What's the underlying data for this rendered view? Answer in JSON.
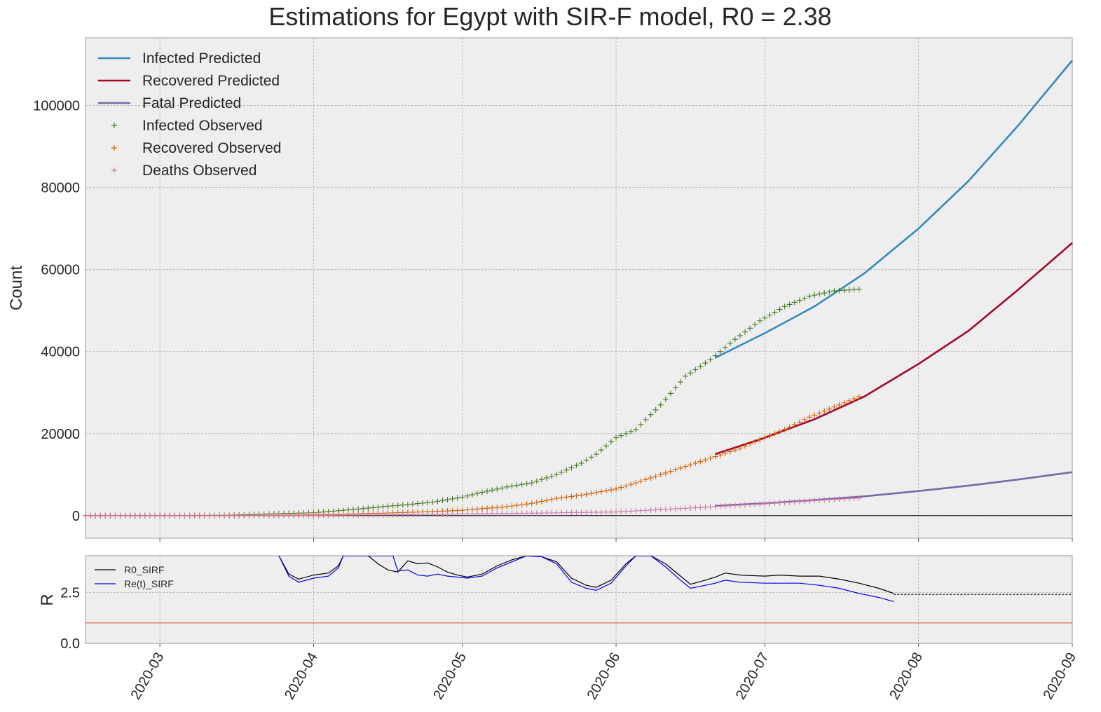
{
  "chart_data": [
    {
      "type": "line",
      "title": "Estimations for Egypt with SIR-F model, R0 = 2.38",
      "xlabel": "",
      "ylabel": "Count",
      "xlim": [
        "2020-02-15",
        "2020-09-01"
      ],
      "ylim": [
        -5500,
        116500
      ],
      "yticks": [
        0,
        20000,
        40000,
        60000,
        80000,
        100000
      ],
      "grid": true,
      "legend_position": "top-left",
      "series": [
        {
          "name": "Infected Predicted",
          "kind": "line",
          "color": "#348ABD",
          "x": [
            "2020-06-21",
            "2020-07-01",
            "2020-07-11",
            "2020-07-21",
            "2020-08-01",
            "2020-08-11",
            "2020-08-21",
            "2020-09-01"
          ],
          "values": [
            38500,
            44500,
            51000,
            59000,
            70000,
            81500,
            95000,
            111000
          ]
        },
        {
          "name": "Recovered Predicted",
          "kind": "line",
          "color": "#A60628",
          "x": [
            "2020-06-21",
            "2020-07-01",
            "2020-07-11",
            "2020-07-21",
            "2020-08-01",
            "2020-08-11",
            "2020-08-21",
            "2020-09-01"
          ],
          "values": [
            15000,
            19000,
            23500,
            29000,
            37000,
            45000,
            55000,
            66500
          ]
        },
        {
          "name": "Fatal Predicted",
          "kind": "line",
          "color": "#7A68A6",
          "x": [
            "2020-06-21",
            "2020-07-01",
            "2020-07-11",
            "2020-07-21",
            "2020-08-01",
            "2020-08-11",
            "2020-08-21",
            "2020-09-01"
          ],
          "values": [
            2400,
            3000,
            3800,
            4700,
            6000,
            7300,
            8800,
            10600
          ]
        },
        {
          "name": "Infected Observed",
          "kind": "scatter",
          "marker": "+",
          "color": "#467821",
          "x": [
            "2020-02-15",
            "2020-03-01",
            "2020-03-15",
            "2020-03-25",
            "2020-04-01",
            "2020-04-10",
            "2020-04-15",
            "2020-04-20",
            "2020-04-25",
            "2020-05-01",
            "2020-05-05",
            "2020-05-10",
            "2020-05-15",
            "2020-05-20",
            "2020-05-25",
            "2020-05-28",
            "2020-06-01",
            "2020-06-05",
            "2020-06-10",
            "2020-06-15",
            "2020-06-20",
            "2020-06-25",
            "2020-06-30",
            "2020-07-05",
            "2020-07-10",
            "2020-07-15",
            "2020-07-20"
          ],
          "values": [
            0,
            0,
            100,
            500,
            700,
            1600,
            2200,
            2700,
            3300,
            4500,
            5700,
            7000,
            8000,
            10000,
            12800,
            15000,
            19000,
            21000,
            27000,
            34000,
            38000,
            43000,
            47500,
            51000,
            53500,
            54800,
            55200
          ]
        },
        {
          "name": "Recovered Observed",
          "kind": "scatter",
          "marker": "+",
          "color": "#D55E00",
          "x": [
            "2020-02-15",
            "2020-03-15",
            "2020-04-01",
            "2020-04-15",
            "2020-04-25",
            "2020-05-01",
            "2020-05-10",
            "2020-05-15",
            "2020-05-20",
            "2020-05-25",
            "2020-06-01",
            "2020-06-05",
            "2020-06-10",
            "2020-06-15",
            "2020-06-20",
            "2020-06-25",
            "2020-07-01",
            "2020-07-05",
            "2020-07-10",
            "2020-07-15",
            "2020-07-20"
          ],
          "values": [
            0,
            0,
            200,
            600,
            1000,
            1300,
            2200,
            3000,
            4200,
            5000,
            6500,
            8000,
            10000,
            12000,
            14000,
            16000,
            19000,
            21000,
            24000,
            26500,
            29000
          ]
        },
        {
          "name": "Deaths Observed",
          "kind": "scatter",
          "marker": "+",
          "color": "#CC79A7",
          "x": [
            "2020-02-15",
            "2020-03-15",
            "2020-04-01",
            "2020-04-15",
            "2020-05-01",
            "2020-05-15",
            "2020-06-01",
            "2020-06-15",
            "2020-07-01",
            "2020-07-10",
            "2020-07-20"
          ],
          "values": [
            0,
            0,
            50,
            200,
            400,
            600,
            900,
            1800,
            2900,
            3600,
            4300
          ]
        }
      ]
    },
    {
      "type": "line",
      "title": "",
      "xlabel": "",
      "ylabel": "R",
      "xlim": [
        "2020-02-15",
        "2020-09-01"
      ],
      "ylim": [
        0,
        4.3
      ],
      "yticks": [
        0.0,
        2.5
      ],
      "ytick_labels": [
        "0.0",
        "2.5"
      ],
      "xticks": [
        "2020-03-01",
        "2020-04-01",
        "2020-05-01",
        "2020-06-01",
        "2020-07-01",
        "2020-08-01",
        "2020-09-01"
      ],
      "xtick_labels": [
        "2020-03",
        "2020-04",
        "2020-05",
        "2020-06",
        "2020-07",
        "2020-08",
        "2020-09"
      ],
      "grid": true,
      "legend_position": "top-left",
      "reference_line": {
        "value": 1.0,
        "color": "#E24A33"
      },
      "series": [
        {
          "name": "R0_SIRF",
          "color": "#000000",
          "x": [
            "2020-03-25",
            "2020-03-27",
            "2020-03-29",
            "2020-04-01",
            "2020-04-04",
            "2020-04-06",
            "2020-04-07",
            "2020-04-12",
            "2020-04-14",
            "2020-04-16",
            "2020-04-18",
            "2020-04-20",
            "2020-04-22",
            "2020-04-24",
            "2020-04-26",
            "2020-04-28",
            "2020-04-30",
            "2020-05-02",
            "2020-05-05",
            "2020-05-08",
            "2020-05-11",
            "2020-05-14",
            "2020-05-17",
            "2020-05-20",
            "2020-05-23",
            "2020-05-26",
            "2020-05-28",
            "2020-05-31",
            "2020-06-03",
            "2020-06-05",
            "2020-06-07",
            "2020-06-08",
            "2020-06-11",
            "2020-06-14",
            "2020-06-16",
            "2020-06-19",
            "2020-06-21",
            "2020-06-23",
            "2020-06-26",
            "2020-07-01",
            "2020-07-04",
            "2020-07-08",
            "2020-07-12",
            "2020-07-16",
            "2020-07-20",
            "2020-07-24",
            "2020-07-27"
          ],
          "values": [
            4.3,
            3.4,
            3.15,
            3.35,
            3.45,
            3.8,
            4.3,
            4.3,
            3.9,
            3.6,
            3.5,
            4.05,
            3.9,
            3.95,
            3.75,
            3.5,
            3.35,
            3.25,
            3.4,
            3.8,
            4.1,
            4.3,
            4.25,
            4.0,
            3.2,
            2.85,
            2.75,
            3.1,
            3.9,
            4.3,
            4.3,
            4.3,
            3.9,
            3.3,
            2.9,
            3.1,
            3.25,
            3.45,
            3.35,
            3.3,
            3.35,
            3.3,
            3.3,
            3.15,
            2.95,
            2.7,
            2.45
          ]
        },
        {
          "name": "Re(t)_SIRF",
          "color": "#0000FF",
          "x": [
            "2020-03-25",
            "2020-03-27",
            "2020-03-29",
            "2020-04-01",
            "2020-04-04",
            "2020-04-06",
            "2020-04-07",
            "2020-04-17",
            "2020-04-18",
            "2020-04-20",
            "2020-04-22",
            "2020-04-24",
            "2020-04-26",
            "2020-04-28",
            "2020-04-30",
            "2020-05-02",
            "2020-05-05",
            "2020-05-08",
            "2020-05-11",
            "2020-05-14",
            "2020-05-17",
            "2020-05-20",
            "2020-05-23",
            "2020-05-26",
            "2020-05-28",
            "2020-05-31",
            "2020-06-03",
            "2020-06-05",
            "2020-06-07",
            "2020-06-08",
            "2020-06-11",
            "2020-06-14",
            "2020-06-16",
            "2020-06-19",
            "2020-06-21",
            "2020-06-23",
            "2020-06-26",
            "2020-07-01",
            "2020-07-04",
            "2020-07-08",
            "2020-07-12",
            "2020-07-16",
            "2020-07-20",
            "2020-07-24",
            "2020-07-27"
          ],
          "values": [
            4.3,
            3.3,
            3.0,
            3.2,
            3.3,
            3.7,
            4.3,
            4.3,
            3.55,
            3.6,
            3.35,
            3.3,
            3.4,
            3.3,
            3.25,
            3.2,
            3.3,
            3.7,
            4.0,
            4.3,
            4.25,
            3.9,
            3.0,
            2.7,
            2.6,
            2.95,
            3.8,
            4.3,
            4.3,
            4.3,
            3.75,
            3.1,
            2.7,
            2.85,
            2.95,
            3.1,
            3.0,
            2.95,
            2.95,
            2.95,
            2.85,
            2.7,
            2.45,
            2.25,
            2.05
          ]
        },
        {
          "name": "",
          "color": "#000000",
          "dashed": true,
          "x": [
            "2020-07-27",
            "2020-09-01"
          ],
          "values": [
            2.4,
            2.4
          ]
        }
      ]
    }
  ]
}
